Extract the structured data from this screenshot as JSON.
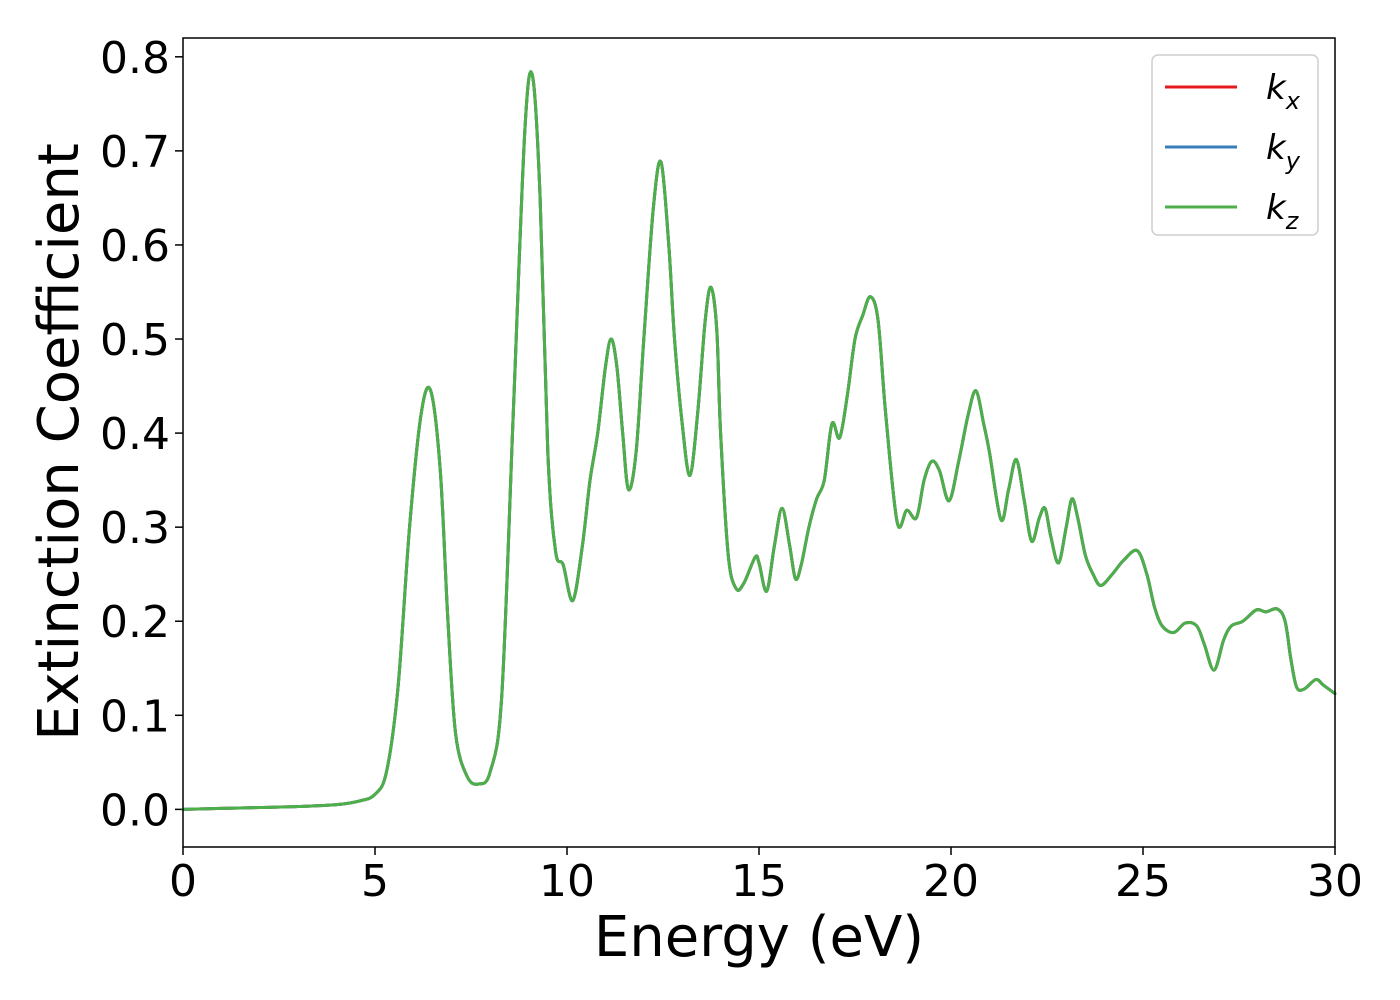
{
  "chart_data": {
    "type": "line",
    "title": "",
    "xlabel": "Energy (eV)",
    "ylabel": "Extinction Coefficient",
    "xlim": [
      0,
      30
    ],
    "ylim": [
      -0.04,
      0.82
    ],
    "x_ticks": [
      0,
      5,
      10,
      15,
      20,
      25,
      30
    ],
    "y_ticks": [
      0.0,
      0.1,
      0.2,
      0.3,
      0.4,
      0.5,
      0.6,
      0.7,
      0.8
    ],
    "grid": false,
    "legend_position": "top-right",
    "series": [
      {
        "name": "k_x",
        "legend_main": "k",
        "legend_sub": "x",
        "color": "#e41a1c",
        "points": [
          [
            0,
            0.0
          ],
          [
            1,
            0.001
          ],
          [
            2,
            0.002
          ],
          [
            3,
            0.003
          ],
          [
            4,
            0.005
          ],
          [
            4.6,
            0.009
          ],
          [
            5.0,
            0.016
          ],
          [
            5.3,
            0.04
          ],
          [
            5.6,
            0.13
          ],
          [
            5.9,
            0.3
          ],
          [
            6.2,
            0.42
          ],
          [
            6.45,
            0.445
          ],
          [
            6.7,
            0.36
          ],
          [
            6.9,
            0.2
          ],
          [
            7.1,
            0.08
          ],
          [
            7.4,
            0.035
          ],
          [
            7.7,
            0.027
          ],
          [
            8.0,
            0.04
          ],
          [
            8.3,
            0.12
          ],
          [
            8.6,
            0.42
          ],
          [
            8.9,
            0.72
          ],
          [
            9.1,
            0.78
          ],
          [
            9.3,
            0.65
          ],
          [
            9.5,
            0.38
          ],
          [
            9.7,
            0.275
          ],
          [
            9.9,
            0.26
          ],
          [
            10.15,
            0.222
          ],
          [
            10.4,
            0.28
          ],
          [
            10.6,
            0.35
          ],
          [
            10.8,
            0.4
          ],
          [
            11.0,
            0.47
          ],
          [
            11.15,
            0.5
          ],
          [
            11.3,
            0.47
          ],
          [
            11.45,
            0.4
          ],
          [
            11.6,
            0.34
          ],
          [
            11.8,
            0.38
          ],
          [
            12.0,
            0.5
          ],
          [
            12.25,
            0.64
          ],
          [
            12.45,
            0.688
          ],
          [
            12.65,
            0.6
          ],
          [
            12.8,
            0.5
          ],
          [
            13.0,
            0.41
          ],
          [
            13.2,
            0.355
          ],
          [
            13.4,
            0.42
          ],
          [
            13.6,
            0.52
          ],
          [
            13.75,
            0.555
          ],
          [
            13.9,
            0.51
          ],
          [
            14.0,
            0.4
          ],
          [
            14.2,
            0.27
          ],
          [
            14.4,
            0.235
          ],
          [
            14.6,
            0.24
          ],
          [
            14.9,
            0.268
          ],
          [
            15.0,
            0.262
          ],
          [
            15.2,
            0.232
          ],
          [
            15.4,
            0.28
          ],
          [
            15.6,
            0.32
          ],
          [
            15.8,
            0.28
          ],
          [
            15.95,
            0.245
          ],
          [
            16.1,
            0.26
          ],
          [
            16.3,
            0.3
          ],
          [
            16.5,
            0.33
          ],
          [
            16.7,
            0.35
          ],
          [
            16.9,
            0.41
          ],
          [
            17.1,
            0.395
          ],
          [
            17.3,
            0.44
          ],
          [
            17.5,
            0.5
          ],
          [
            17.7,
            0.525
          ],
          [
            17.9,
            0.545
          ],
          [
            18.1,
            0.52
          ],
          [
            18.3,
            0.42
          ],
          [
            18.6,
            0.305
          ],
          [
            18.85,
            0.318
          ],
          [
            19.1,
            0.31
          ],
          [
            19.3,
            0.35
          ],
          [
            19.5,
            0.37
          ],
          [
            19.7,
            0.36
          ],
          [
            19.95,
            0.328
          ],
          [
            20.2,
            0.37
          ],
          [
            20.45,
            0.42
          ],
          [
            20.65,
            0.445
          ],
          [
            20.85,
            0.41
          ],
          [
            21.0,
            0.38
          ],
          [
            21.3,
            0.308
          ],
          [
            21.5,
            0.34
          ],
          [
            21.7,
            0.372
          ],
          [
            21.9,
            0.33
          ],
          [
            22.1,
            0.285
          ],
          [
            22.3,
            0.31
          ],
          [
            22.45,
            0.32
          ],
          [
            22.6,
            0.29
          ],
          [
            22.8,
            0.262
          ],
          [
            23.0,
            0.3
          ],
          [
            23.15,
            0.33
          ],
          [
            23.3,
            0.31
          ],
          [
            23.5,
            0.27
          ],
          [
            23.7,
            0.25
          ],
          [
            23.9,
            0.238
          ],
          [
            24.2,
            0.25
          ],
          [
            24.5,
            0.265
          ],
          [
            24.85,
            0.275
          ],
          [
            25.1,
            0.25
          ],
          [
            25.3,
            0.215
          ],
          [
            25.5,
            0.195
          ],
          [
            25.8,
            0.188
          ],
          [
            26.1,
            0.198
          ],
          [
            26.4,
            0.195
          ],
          [
            26.6,
            0.175
          ],
          [
            26.85,
            0.148
          ],
          [
            27.1,
            0.18
          ],
          [
            27.3,
            0.195
          ],
          [
            27.6,
            0.2
          ],
          [
            27.95,
            0.212
          ],
          [
            28.2,
            0.21
          ],
          [
            28.5,
            0.213
          ],
          [
            28.7,
            0.2
          ],
          [
            28.85,
            0.16
          ],
          [
            29.0,
            0.13
          ],
          [
            29.2,
            0.128
          ],
          [
            29.5,
            0.138
          ],
          [
            29.7,
            0.132
          ],
          [
            30.0,
            0.123
          ]
        ]
      },
      {
        "name": "k_y",
        "legend_main": "k",
        "legend_sub": "y",
        "color": "#377eb8",
        "same_as": "k_x"
      },
      {
        "name": "k_z",
        "legend_main": "k",
        "legend_sub": "z",
        "color": "#4daf4a",
        "same_as": "k_x"
      }
    ]
  }
}
